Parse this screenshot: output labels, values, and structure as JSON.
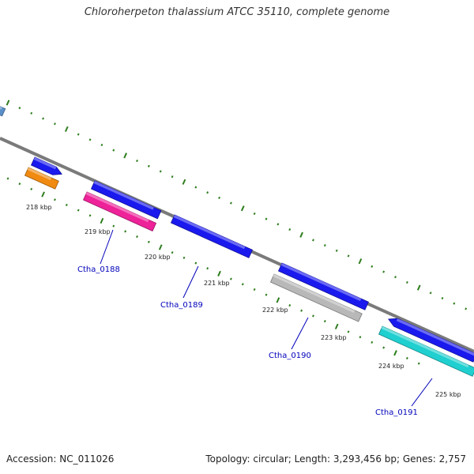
{
  "title": "Chloroherpeton thalassium ATCC 35110, complete genome",
  "footer": {
    "accession": "Accession: NC_011026",
    "summary": "Topology: circular; Length: 3,293,456 bp; Genes: 2,757"
  },
  "colors": {
    "backbone": "#808080",
    "ticks": "#2e7d1e",
    "gene_label": "#0000bb",
    "gene_blue": "#1a1aee",
    "gene_orange": "#f08a10",
    "gene_magenta": "#ee2299",
    "gene_gray": "#b8b8b8",
    "gene_cyan": "#20cfcf",
    "gene_steelblue": "#5a8fc8"
  },
  "ticks": [
    {
      "label": "218 kbp"
    },
    {
      "label": "219 kbp"
    },
    {
      "label": "220 kbp"
    },
    {
      "label": "221 kbp"
    },
    {
      "label": "222 kbp"
    },
    {
      "label": "223 kbp"
    },
    {
      "label": "224 kbp"
    },
    {
      "label": "225 kbp"
    }
  ],
  "gene_labels": [
    {
      "text": "Ctha_0188"
    },
    {
      "text": "Ctha_0189"
    },
    {
      "text": "Ctha_0190"
    },
    {
      "text": "Ctha_0191"
    }
  ]
}
